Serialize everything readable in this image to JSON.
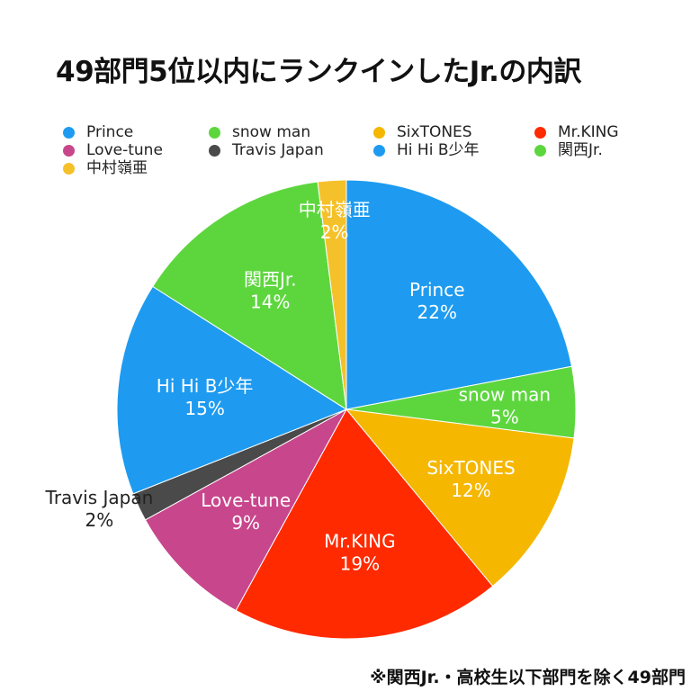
{
  "title": "49部門5位以内にランクインしたJr.の内訳",
  "footnote": "※関西Jr.・高校生以下部門を除く49部門",
  "chart_data": {
    "type": "pie",
    "title": "49部門5位以内にランクインしたJr.の内訳",
    "legend_position": "top",
    "slices": [
      {
        "label": "Prince",
        "value": 22,
        "pct_label": "22%",
        "color": "#1E9BF0",
        "text_color": "#ffffff"
      },
      {
        "label": "snow man",
        "value": 5,
        "pct_label": "5%",
        "color": "#5DD63E",
        "text_color": "#ffffff"
      },
      {
        "label": "SixTONES",
        "value": 12,
        "pct_label": "12%",
        "color": "#F5B700",
        "text_color": "#ffffff"
      },
      {
        "label": "Mr.KING",
        "value": 19,
        "pct_label": "19%",
        "color": "#FF2A00",
        "text_color": "#ffffff"
      },
      {
        "label": "Love-tune",
        "value": 9,
        "pct_label": "9%",
        "color": "#C8468C",
        "text_color": "#ffffff"
      },
      {
        "label": "Travis Japan",
        "value": 2,
        "pct_label": "2%",
        "color": "#4A4A4A",
        "text_color": "#222222"
      },
      {
        "label": "Hi Hi B少年",
        "value": 15,
        "pct_label": "15%",
        "color": "#1E9BF0",
        "text_color": "#ffffff"
      },
      {
        "label": "関西Jr.",
        "value": 14,
        "pct_label": "14%",
        "color": "#5DD63E",
        "text_color": "#ffffff"
      },
      {
        "label": "中村嶺亜",
        "value": 2,
        "pct_label": "2%",
        "color": "#F5C12A",
        "text_color": "#ffffff"
      }
    ]
  }
}
